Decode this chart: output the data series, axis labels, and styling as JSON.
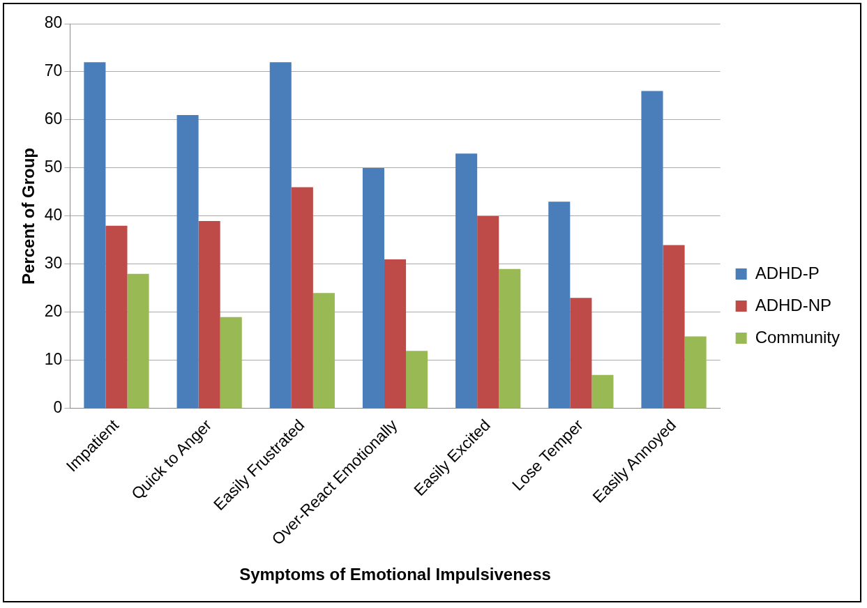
{
  "chart_data": {
    "type": "bar",
    "categories": [
      "Impatient",
      "Quick to Anger",
      "Easily Frustrated",
      "Over-React Emotionally",
      "Easily Excited",
      "Lose Temper",
      "Easily Annoyed"
    ],
    "series": [
      {
        "name": "ADHD-P",
        "color": "#4a7ebb",
        "values": [
          72,
          61,
          72,
          50,
          53,
          43,
          66
        ]
      },
      {
        "name": "ADHD-NP",
        "color": "#be4b48",
        "values": [
          38,
          39,
          46,
          31,
          40,
          23,
          34
        ]
      },
      {
        "name": "Community",
        "color": "#98b954",
        "values": [
          28,
          19,
          24,
          12,
          29,
          7,
          15
        ]
      }
    ],
    "xlabel": "Symptoms of Emotional Impulsiveness",
    "ylabel": "Percent of Group",
    "ylim": [
      0,
      80
    ],
    "yticks": [
      0,
      10,
      20,
      30,
      40,
      50,
      60,
      70,
      80
    ],
    "grid": "y",
    "legend": "right"
  }
}
